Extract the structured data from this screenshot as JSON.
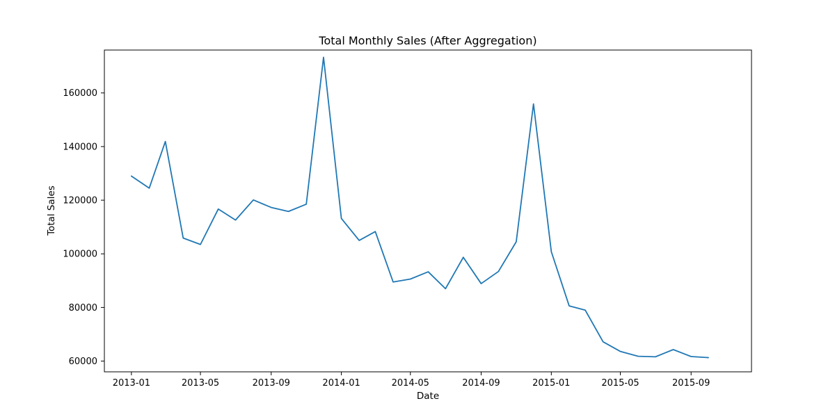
{
  "chart_data": {
    "type": "line",
    "title": "Total Monthly Sales (After Aggregation)",
    "xlabel": "Date",
    "ylabel": "Total Sales",
    "xlim": [
      "2012-11-15",
      "2015-12-15"
    ],
    "ylim": [
      56000,
      176000
    ],
    "x_ticks": [
      "2013-01",
      "2013-05",
      "2013-09",
      "2014-01",
      "2014-05",
      "2014-09",
      "2015-01",
      "2015-05",
      "2015-09"
    ],
    "y_ticks": [
      60000,
      80000,
      100000,
      120000,
      140000,
      160000
    ],
    "grid": false,
    "series": [
      {
        "color": "#1f77b4",
        "x": [
          "2013-01",
          "2013-02",
          "2013-03",
          "2013-04",
          "2013-05",
          "2013-06",
          "2013-07",
          "2013-08",
          "2013-09",
          "2013-10",
          "2013-11",
          "2013-12",
          "2014-01",
          "2014-02",
          "2014-03",
          "2014-04",
          "2014-05",
          "2014-06",
          "2014-07",
          "2014-08",
          "2014-09",
          "2014-10",
          "2014-11",
          "2014-12",
          "2015-01",
          "2015-02",
          "2015-03",
          "2015-04",
          "2015-05",
          "2015-06",
          "2015-07",
          "2015-08",
          "2015-09",
          "2015-10"
        ],
        "values": [
          129000,
          124500,
          141900,
          105900,
          103500,
          116700,
          112600,
          120100,
          117300,
          115800,
          118500,
          173300,
          113200,
          105000,
          108300,
          89500,
          90600,
          93300,
          87000,
          98700,
          88900,
          93400,
          104500,
          155900,
          100800,
          80600,
          79000,
          67200,
          63600,
          61800,
          61600,
          64300,
          61700,
          61300
        ]
      }
    ]
  }
}
